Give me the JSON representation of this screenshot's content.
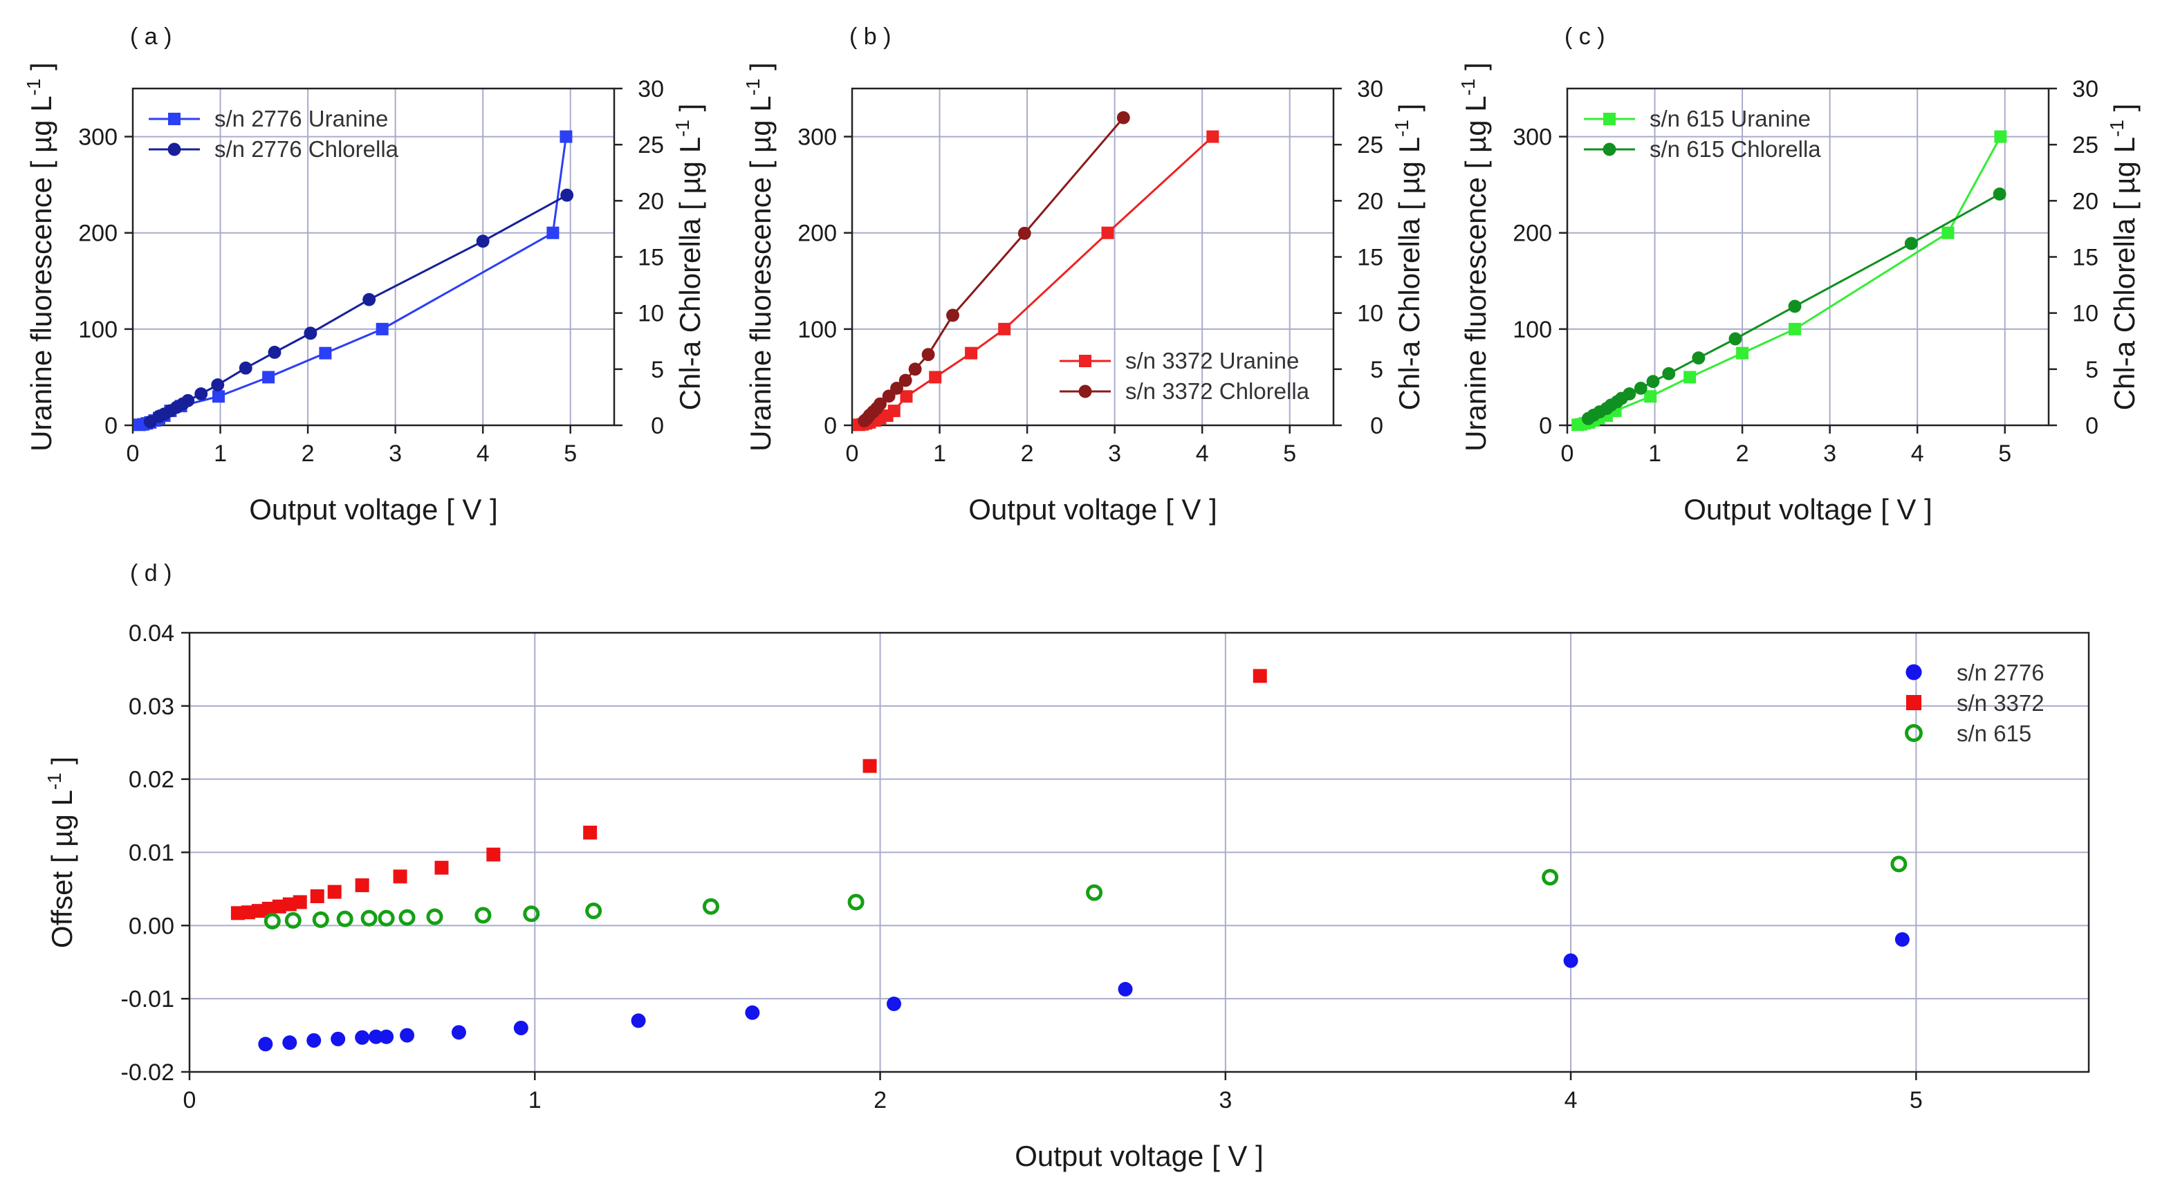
{
  "figure_title": "",
  "chart_data": [
    {
      "panel_label": "( a )",
      "type": "line",
      "xlabel": "Output voltage [ V ]",
      "xlim": [
        0,
        5.5
      ],
      "xticks": [
        "0",
        "1",
        "2",
        "3",
        "4",
        "5"
      ],
      "ylabel": "Uranine fluorescence [ µg L-1 ]",
      "ylim": [
        0,
        350
      ],
      "yticks": [
        "0",
        "100",
        "200",
        "300"
      ],
      "y2label": "Chl-a Chlorella [ µg L-1 ]",
      "y2lim": [
        0,
        30
      ],
      "y2ticks": [
        "0",
        "5",
        "10",
        "15",
        "20",
        "25",
        "30"
      ],
      "grid": true,
      "legend_position": "top-left",
      "series": [
        {
          "name": "s/n 2776 Uranine",
          "axis": "left",
          "marker": "square",
          "color": "#2b3ff5",
          "x": [
            0.08,
            0.12,
            0.16,
            0.2,
            0.25,
            0.3,
            0.36,
            0.43,
            0.55,
            0.98,
            1.55,
            2.2,
            2.85,
            4.8,
            4.95
          ],
          "y": [
            0.5,
            1,
            2,
            3,
            5,
            7.5,
            10,
            15,
            20,
            30,
            50,
            75,
            100,
            200,
            300
          ]
        },
        {
          "name": "s/n 2776 Chlorella",
          "axis": "right",
          "marker": "circle",
          "color": "#17209a",
          "x": [
            0.2,
            0.3,
            0.36,
            0.43,
            0.5,
            0.57,
            0.63,
            0.78,
            0.97,
            1.29,
            1.62,
            2.03,
            2.7,
            4.0,
            4.96
          ],
          "y": [
            0.3,
            0.8,
            1.0,
            1.3,
            1.6,
            1.9,
            2.2,
            2.8,
            3.6,
            5.1,
            6.5,
            8.2,
            11.2,
            16.4,
            20.5
          ]
        }
      ]
    },
    {
      "panel_label": "( b )",
      "type": "line",
      "xlabel": "Output voltage [ V ]",
      "xlim": [
        0,
        5.5
      ],
      "xticks": [
        "0",
        "1",
        "2",
        "3",
        "4",
        "5"
      ],
      "ylabel": "Uranine fluorescence [ µg L-1 ]",
      "ylim": [
        0,
        350
      ],
      "yticks": [
        "0",
        "100",
        "200",
        "300"
      ],
      "y2label": "Chl-a Chlorella [ µg L-1 ]",
      "y2lim": [
        0,
        30
      ],
      "y2ticks": [
        "0",
        "5",
        "10",
        "15",
        "20",
        "25",
        "30"
      ],
      "grid": true,
      "legend_position": "bottom-right",
      "series": [
        {
          "name": "s/n 3372 Uranine",
          "axis": "left",
          "marker": "square",
          "color": "#ee2222",
          "x": [
            0.08,
            0.12,
            0.16,
            0.2,
            0.26,
            0.32,
            0.4,
            0.48,
            0.62,
            0.95,
            1.36,
            1.74,
            2.92,
            4.12
          ],
          "y": [
            0.5,
            1,
            2,
            3,
            5,
            7.5,
            10,
            15,
            30,
            50,
            75,
            100,
            200,
            300
          ]
        },
        {
          "name": "s/n 3372 Chlorella",
          "axis": "right",
          "marker": "circle",
          "color": "#8b1a1a",
          "x": [
            0.14,
            0.17,
            0.2,
            0.24,
            0.28,
            0.32,
            0.42,
            0.51,
            0.61,
            0.72,
            0.87,
            1.15,
            1.97,
            3.1
          ],
          "y": [
            0.4,
            0.6,
            0.9,
            1.2,
            1.5,
            1.9,
            2.6,
            3.3,
            4.0,
            5.0,
            6.3,
            9.8,
            17.1,
            27.4
          ]
        }
      ]
    },
    {
      "panel_label": "( c )",
      "type": "line",
      "xlabel": "Output voltage [ V ]",
      "xlim": [
        0,
        5.5
      ],
      "xticks": [
        "0",
        "1",
        "2",
        "3",
        "4",
        "5"
      ],
      "ylabel": "Uranine fluorescence [ µg L-1 ]",
      "ylim": [
        0,
        350
      ],
      "yticks": [
        "0",
        "100",
        "200",
        "300"
      ],
      "y2label": "Chl-a Chlorella [ µg L-1 ]",
      "y2lim": [
        0,
        30
      ],
      "y2ticks": [
        "0",
        "5",
        "10",
        "15",
        "20",
        "25",
        "30"
      ],
      "grid": true,
      "legend_position": "top-left",
      "series": [
        {
          "name": "s/n 615 Uranine",
          "axis": "left",
          "marker": "square",
          "color": "#33ee33",
          "x": [
            0.12,
            0.16,
            0.2,
            0.25,
            0.3,
            0.36,
            0.45,
            0.55,
            0.95,
            1.4,
            2.0,
            2.6,
            4.35,
            4.95
          ],
          "y": [
            0.5,
            1,
            2,
            3,
            5,
            7.5,
            10,
            15,
            30,
            50,
            75,
            100,
            200,
            300
          ]
        },
        {
          "name": "s/n 615 Chlorella",
          "axis": "right",
          "marker": "circle",
          "color": "#109020",
          "x": [
            0.24,
            0.3,
            0.37,
            0.45,
            0.5,
            0.57,
            0.62,
            0.71,
            0.84,
            0.98,
            1.16,
            1.5,
            1.92,
            2.6,
            3.93,
            4.94
          ],
          "y": [
            0.6,
            0.9,
            1.2,
            1.5,
            1.8,
            2.1,
            2.4,
            2.8,
            3.3,
            3.9,
            4.6,
            6.0,
            7.7,
            10.6,
            16.2,
            20.6
          ]
        }
      ]
    },
    {
      "panel_label": "( d )",
      "type": "scatter",
      "xlabel": "Output voltage [ V ]",
      "xlim": [
        0,
        5.5
      ],
      "xticks": [
        "0",
        "1",
        "2",
        "3",
        "4",
        "5"
      ],
      "ylabel": "Offset [ µg L-1 ]",
      "ylim": [
        -0.02,
        0.04
      ],
      "yticks": [
        "-0.02",
        "-0.01",
        "0.00",
        "0.01",
        "0.02",
        "0.03",
        "0.04"
      ],
      "grid": true,
      "legend_position": "top-right",
      "series": [
        {
          "name": "s/n 2776",
          "marker": "circle",
          "color": "#1414ee",
          "x": [
            0.22,
            0.29,
            0.36,
            0.43,
            0.5,
            0.54,
            0.57,
            0.63,
            0.78,
            0.96,
            1.3,
            1.63,
            2.04,
            2.71,
            4.0,
            4.96
          ],
          "y": [
            -0.0162,
            -0.016,
            -0.0157,
            -0.0155,
            -0.0153,
            -0.0152,
            -0.0152,
            -0.015,
            -0.0146,
            -0.014,
            -0.013,
            -0.0119,
            -0.0107,
            -0.0087,
            -0.0048,
            -0.0019
          ]
        },
        {
          "name": "s/n 3372",
          "marker": "square",
          "color": "#ee1111",
          "x": [
            0.14,
            0.17,
            0.2,
            0.23,
            0.26,
            0.29,
            0.32,
            0.37,
            0.42,
            0.5,
            0.61,
            0.73,
            0.88,
            1.16,
            1.97,
            3.1
          ],
          "y": [
            0.0017,
            0.0018,
            0.002,
            0.0023,
            0.0026,
            0.0029,
            0.0032,
            0.004,
            0.0046,
            0.0055,
            0.0067,
            0.0079,
            0.0097,
            0.0127,
            0.0218,
            0.0341
          ]
        },
        {
          "name": "s/n 615",
          "marker": "open-circle",
          "color": "#14a014",
          "x": [
            0.24,
            0.3,
            0.38,
            0.45,
            0.52,
            0.57,
            0.63,
            0.71,
            0.85,
            0.99,
            1.17,
            1.51,
            1.93,
            2.62,
            3.94,
            4.95
          ],
          "y": [
            0.0006,
            0.0007,
            0.0008,
            0.0009,
            0.001,
            0.001,
            0.0011,
            0.0012,
            0.0014,
            0.0016,
            0.002,
            0.0026,
            0.0032,
            0.0045,
            0.0066,
            0.0084
          ]
        }
      ]
    }
  ]
}
